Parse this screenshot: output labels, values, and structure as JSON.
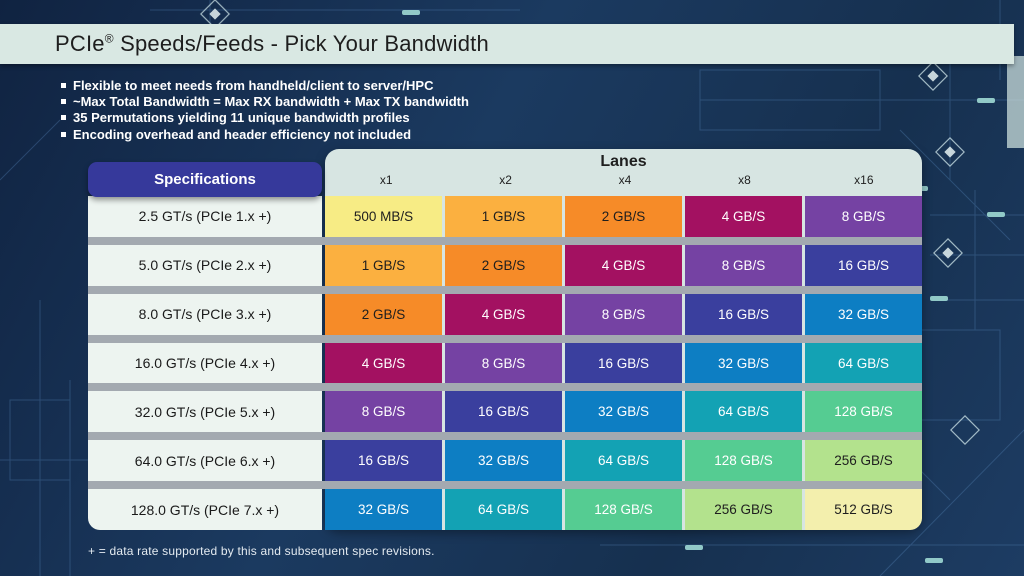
{
  "header": {
    "title_brand": "PCIe",
    "title_reg": "®",
    "title_rest": " Speeds/Feeds - Pick Your Bandwidth"
  },
  "bullets": [
    "Flexible to meet needs from handheld/client to server/HPC",
    "~Max Total Bandwidth = Max RX bandwidth + Max TX bandwidth",
    "35 Permutations yielding 11 unique bandwidth profiles",
    "Encoding overhead and header efficiency not included"
  ],
  "footnote": "+ = data rate supported by this and subsequent spec revisions.",
  "chart_data": {
    "type": "table",
    "title": "PCIe® Speeds/Feeds - Pick Your Bandwidth",
    "row_header_label": "Specifications",
    "column_group_label": "Lanes",
    "columns": [
      "x1",
      "x2",
      "x4",
      "x8",
      "x16"
    ],
    "rows": [
      {
        "spec": "2.5 GT/s (PCIe 1.x +)",
        "values": [
          "500 MB/S",
          "1 GB/S",
          "2 GB/S",
          "4 GB/S",
          "8 GB/S"
        ]
      },
      {
        "spec": "5.0 GT/s (PCIe 2.x +)",
        "values": [
          "1 GB/S",
          "2 GB/S",
          "4 GB/S",
          "8 GB/S",
          "16 GB/S"
        ]
      },
      {
        "spec": "8.0 GT/s (PCIe 3.x +)",
        "values": [
          "2 GB/S",
          "4 GB/S",
          "8 GB/S",
          "16 GB/S",
          "32 GB/S"
        ]
      },
      {
        "spec": "16.0 GT/s (PCIe 4.x +)",
        "values": [
          "4 GB/S",
          "8 GB/S",
          "16 GB/S",
          "32 GB/S",
          "64 GB/S"
        ]
      },
      {
        "spec": "32.0 GT/s (PCIe 5.x +)",
        "values": [
          "8 GB/S",
          "16 GB/S",
          "32 GB/S",
          "64 GB/S",
          "128 GB/S"
        ]
      },
      {
        "spec": "64.0 GT/s (PCIe 6.x +)",
        "values": [
          "16 GB/S",
          "32 GB/S",
          "64 GB/S",
          "128 GB/S",
          "256 GB/S"
        ]
      },
      {
        "spec": "128.0 GT/s (PCIe 7.x +)",
        "values": [
          "32 GB/S",
          "64 GB/S",
          "128 GB/S",
          "256 GB/S",
          "512 GB/S"
        ]
      }
    ]
  },
  "value_styles": {
    "500 MB/S": {
      "bg": "#f7ec85",
      "fg": "#1e1e1e"
    },
    "1 GB/S": {
      "bg": "#fbb040",
      "fg": "#1e1e1e"
    },
    "2 GB/S": {
      "bg": "#f68b28",
      "fg": "#1e1e1e"
    },
    "4 GB/S": {
      "bg": "#a31161",
      "fg": "#ffffff"
    },
    "8 GB/S": {
      "bg": "#7542a3",
      "fg": "#ffffff"
    },
    "16 GB/S": {
      "bg": "#3a3f9e",
      "fg": "#ffffff"
    },
    "32 GB/S": {
      "bg": "#0d7ec3",
      "fg": "#ffffff"
    },
    "64 GB/S": {
      "bg": "#13a2b4",
      "fg": "#ffffff"
    },
    "128 GB/S": {
      "bg": "#55cc92",
      "fg": "#ffffff"
    },
    "256 GB/S": {
      "bg": "#b3e28d",
      "fg": "#1e1e1e"
    },
    "512 GB/S": {
      "bg": "#f3efad",
      "fg": "#1e1e1e"
    }
  },
  "colors": {
    "background": "#16304f",
    "titlebar": "#d9e8e3",
    "lanes_panel": "#d7e5e2",
    "spec_cell": "#edf4f0",
    "spec_header_bg": "#36399b",
    "row_separator": "#a3a9b0",
    "circuit_line": "#5585b8",
    "circuit_highlight": "#9fd9d4"
  }
}
